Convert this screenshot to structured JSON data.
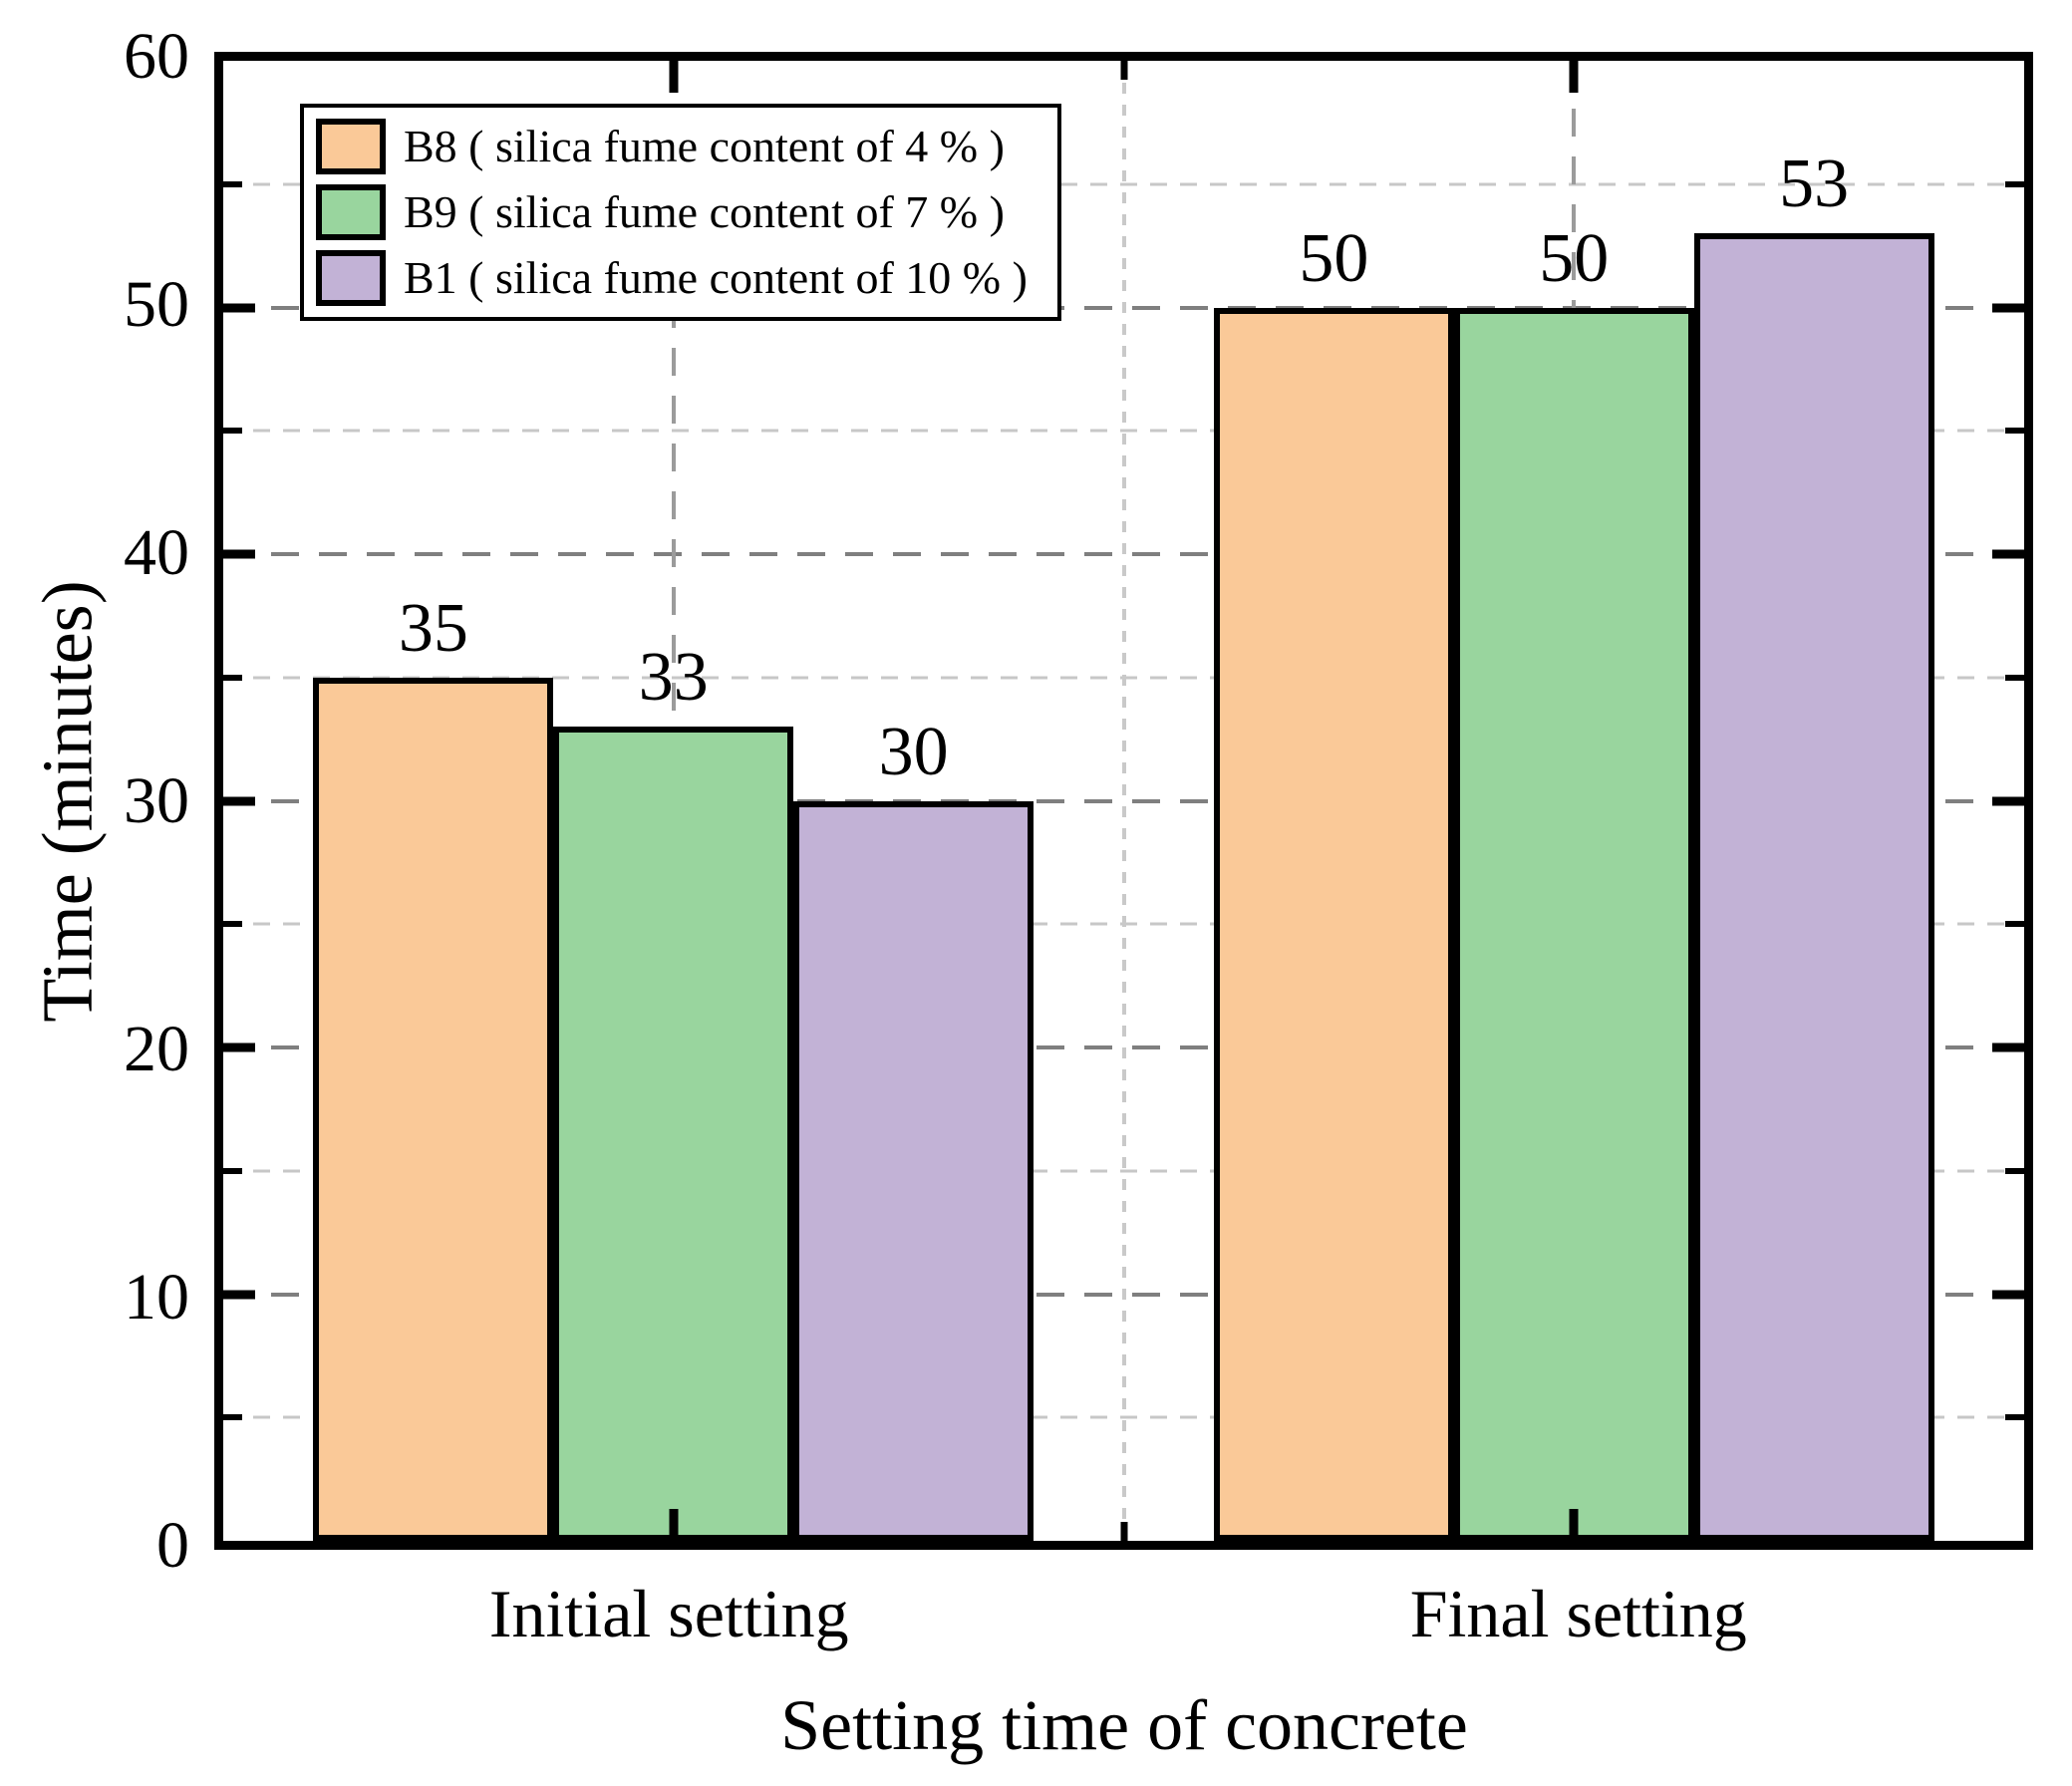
{
  "chart_data": {
    "type": "bar",
    "title": "",
    "xlabel": "Setting time of concrete",
    "ylabel": "Time (minutes)",
    "categories": [
      "Initial setting",
      "Final setting"
    ],
    "series": [
      {
        "name": "B8 ( silica fume content of 4 % )",
        "color": "#FAC998",
        "values": [
          35,
          50
        ]
      },
      {
        "name": "B9 ( silica fume content of 7 % )",
        "color": "#99D59E",
        "values": [
          33,
          50
        ]
      },
      {
        "name": "B1 ( silica fume content of 10 % )",
        "color": "#C2B2D6",
        "values": [
          30,
          53
        ]
      }
    ],
    "ylim": [
      0,
      60
    ],
    "ytick_major_step": 10,
    "ytick_minor_step": 5,
    "ytick_labels": [
      "0",
      "10",
      "20",
      "30",
      "40",
      "50",
      "60"
    ],
    "bar_value_labels": [
      [
        35,
        33,
        30
      ],
      [
        50,
        50,
        53
      ]
    ],
    "grid": {
      "horizontal_major": true,
      "horizontal_minor": true,
      "vertical_at_category_centers": true,
      "vertical_at_category_boundary": true,
      "style": "dashed"
    },
    "legend_position": "upper-left",
    "colors": {
      "bar_edge": "#000000",
      "axis": "#000000",
      "grid_major": "#7f7f7f",
      "grid_minor": "#c7c7c7",
      "background": "#ffffff"
    }
  }
}
